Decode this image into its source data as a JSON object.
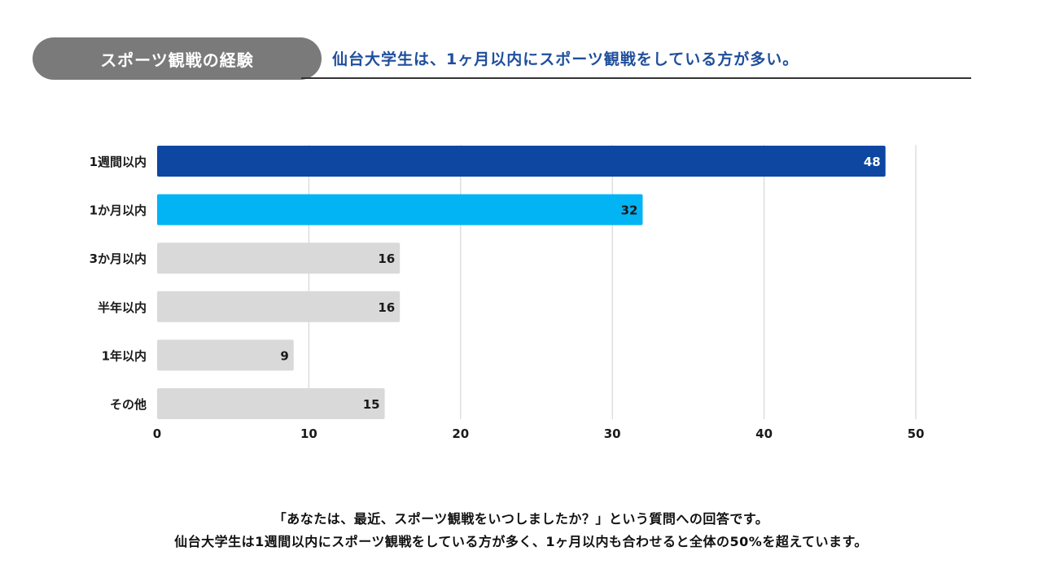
{
  "header": {
    "tag": "スポーツ観戦の経験",
    "headline": "仙台大学生は、1ヶ月以内にスポーツ観戦をしている方が多い。"
  },
  "colors": {
    "primary": "#0d47a1",
    "secondary": "#03b4f4",
    "neutral": "#d9d9d9",
    "grid": "#cfcfcf"
  },
  "chart_data": {
    "type": "bar",
    "orientation": "horizontal",
    "title": "",
    "xlabel": "",
    "ylabel": "",
    "categories": [
      "1週間以内",
      "1か月以内",
      "3か月以内",
      "半年以内",
      "1年以内",
      "その他"
    ],
    "values": [
      48,
      32,
      16,
      16,
      9,
      15
    ],
    "bar_colors": [
      "#0d47a1",
      "#03b4f4",
      "#d9d9d9",
      "#d9d9d9",
      "#d9d9d9",
      "#d9d9d9"
    ],
    "label_colors": [
      "#ffffff",
      "#1a1a1a",
      "#1a1a1a",
      "#1a1a1a",
      "#1a1a1a",
      "#1a1a1a"
    ],
    "xlim": [
      0,
      50
    ],
    "ticks": [
      0,
      10,
      20,
      30,
      40,
      50
    ],
    "grid": true,
    "legend": "none"
  },
  "caption": {
    "line1": "「あなたは、最近、スポーツ観戦をいつしましたか？」という質問への回答です。",
    "line2": "仙台大学生は1週間以内にスポーツ観戦をしている方が多く、1ヶ月以内も合わせると全体の50%を超えています。"
  }
}
